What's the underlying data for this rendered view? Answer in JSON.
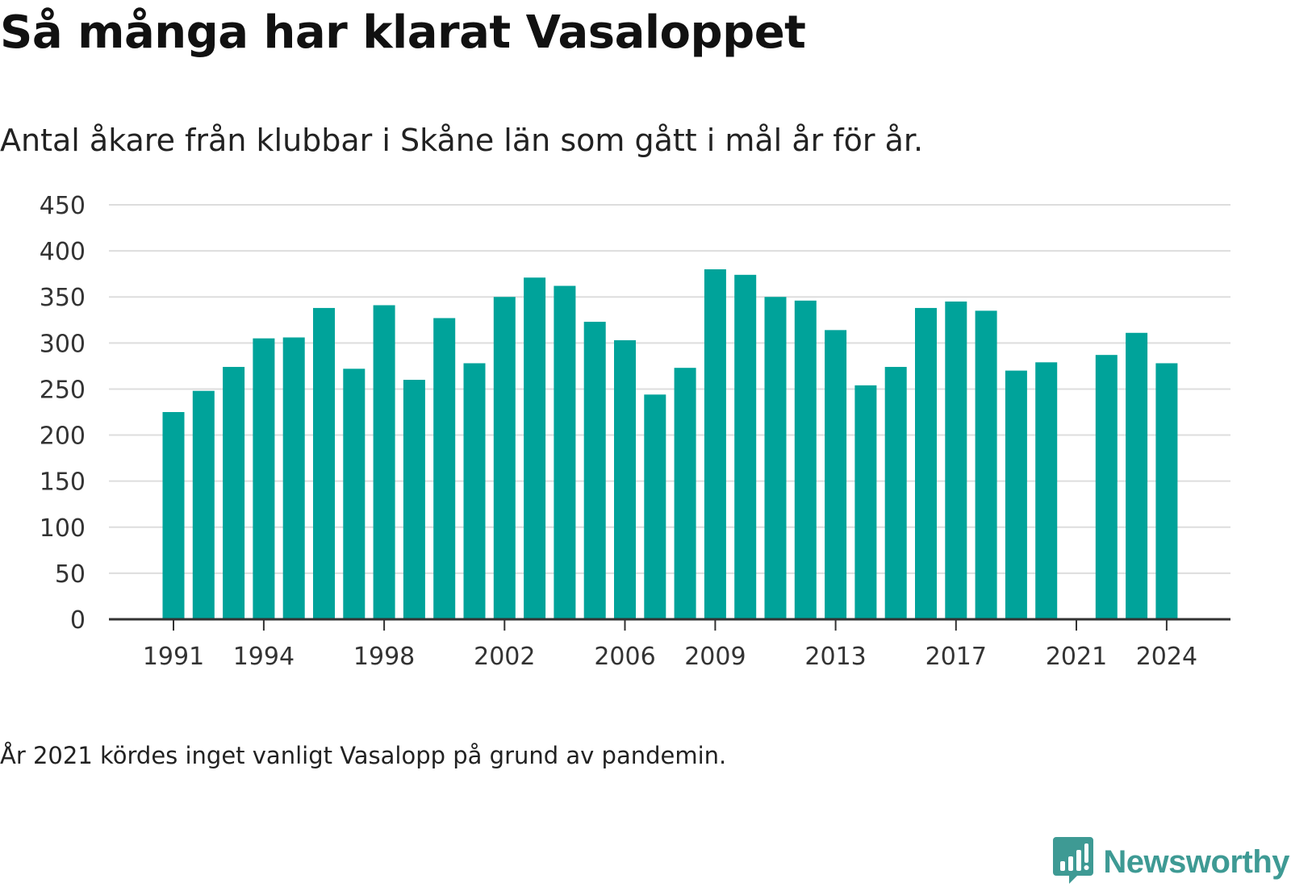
{
  "title": "Så många har klarat Vasaloppet",
  "subtitle": "Antal åkare från klubbar i Skåne län som gått i mål år för år.",
  "footnote": "År 2021 kördes inget vanligt Vasalopp på grund av pandemin.",
  "brand": {
    "name": "Newsworthy",
    "color": "#3e9a94",
    "icon": "newsworthy-logo-icon"
  },
  "colors": {
    "bar": "#00a39a",
    "grid": "#dddddd",
    "axis": "#333333"
  },
  "chart_data": {
    "type": "bar",
    "x": [
      1991,
      1992,
      1993,
      1994,
      1995,
      1996,
      1997,
      1998,
      1999,
      2000,
      2001,
      2002,
      2003,
      2004,
      2005,
      2006,
      2007,
      2008,
      2009,
      2010,
      2011,
      2012,
      2013,
      2014,
      2015,
      2016,
      2017,
      2018,
      2019,
      2020,
      2021,
      2022,
      2023,
      2024
    ],
    "values": [
      225,
      248,
      274,
      305,
      306,
      338,
      272,
      341,
      260,
      327,
      278,
      350,
      371,
      362,
      323,
      303,
      244,
      273,
      380,
      374,
      350,
      346,
      314,
      254,
      274,
      338,
      345,
      335,
      270,
      279,
      null,
      287,
      311,
      278
    ],
    "x_tick_labels": [
      "1991",
      "1994",
      "1998",
      "2002",
      "2006",
      "2009",
      "2013",
      "2017",
      "2021",
      "2024"
    ],
    "y_ticks": [
      0,
      50,
      100,
      150,
      200,
      250,
      300,
      350,
      400,
      450
    ],
    "ylim": [
      0,
      450
    ],
    "xlabel": "",
    "ylabel": "",
    "grid": true,
    "legend": "none"
  }
}
